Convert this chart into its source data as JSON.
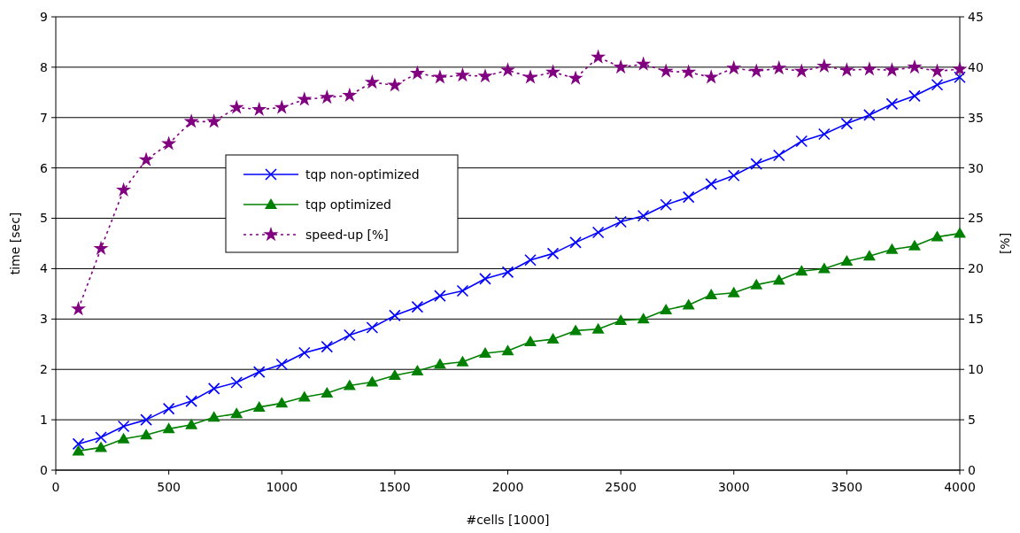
{
  "chart_data": {
    "type": "line",
    "xlabel": "#cells [1000]",
    "ylabel": "time [sec]",
    "y2label": "[%]",
    "x": [
      100,
      200,
      300,
      400,
      500,
      600,
      700,
      800,
      900,
      1000,
      1100,
      1200,
      1300,
      1400,
      1500,
      1600,
      1700,
      1800,
      1900,
      2000,
      2100,
      2200,
      2300,
      2400,
      2500,
      2600,
      2700,
      2800,
      2900,
      3000,
      3100,
      3200,
      3300,
      3400,
      3500,
      3600,
      3700,
      3800,
      3900,
      4000
    ],
    "xlim": [
      0,
      4000
    ],
    "xticks": [
      0,
      500,
      1000,
      1500,
      2000,
      2500,
      3000,
      3500,
      4000
    ],
    "ylim": [
      0,
      9
    ],
    "yticks": [
      0,
      1,
      2,
      3,
      4,
      5,
      6,
      7,
      8,
      9
    ],
    "y2lim": [
      0,
      45
    ],
    "y2ticks": [
      0,
      5,
      10,
      15,
      20,
      25,
      30,
      35,
      40,
      45
    ],
    "grid": "y",
    "legend": "left",
    "series": [
      {
        "name": "tqp non-optimized",
        "color": "#0000ff",
        "marker": "cross",
        "line_style": "solid",
        "values": [
          0.52,
          0.65,
          0.87,
          1.0,
          1.22,
          1.37,
          1.62,
          1.74,
          1.95,
          2.1,
          2.33,
          2.45,
          2.68,
          2.83,
          3.07,
          3.24,
          3.46,
          3.56,
          3.8,
          3.93,
          4.17,
          4.3,
          4.52,
          4.72,
          4.93,
          5.05,
          5.27,
          5.42,
          5.68,
          5.85,
          6.08,
          6.25,
          6.53,
          6.67,
          6.88,
          7.05,
          7.27,
          7.43,
          7.65,
          7.8
        ]
      },
      {
        "name": "tqp optimized",
        "color": "#008000",
        "marker": "triangle",
        "line_style": "solid",
        "values": [
          0.38,
          0.45,
          0.62,
          0.7,
          0.82,
          0.9,
          1.05,
          1.12,
          1.25,
          1.33,
          1.45,
          1.53,
          1.68,
          1.75,
          1.88,
          1.97,
          2.1,
          2.15,
          2.32,
          2.37,
          2.55,
          2.6,
          2.77,
          2.8,
          2.97,
          3.0,
          3.18,
          3.28,
          3.48,
          3.52,
          3.68,
          3.77,
          3.95,
          4.0,
          4.15,
          4.25,
          4.38,
          4.45,
          4.63,
          4.7
        ]
      },
      {
        "name": "speed-up [%]",
        "color": "#800080",
        "marker": "star",
        "line_style": "dotted",
        "axis": "y2",
        "values": [
          16,
          22,
          27.8,
          30.8,
          32.4,
          34.6,
          34.6,
          36,
          35.8,
          36,
          36.8,
          37,
          37.2,
          38.5,
          38.2,
          39.4,
          39,
          39.2,
          39.1,
          39.7,
          39,
          39.5,
          38.9,
          41,
          40,
          40.3,
          39.6,
          39.5,
          39,
          39.9,
          39.6,
          39.9,
          39.6,
          40.1,
          39.7,
          39.8,
          39.7,
          40,
          39.6,
          39.8
        ]
      }
    ]
  }
}
